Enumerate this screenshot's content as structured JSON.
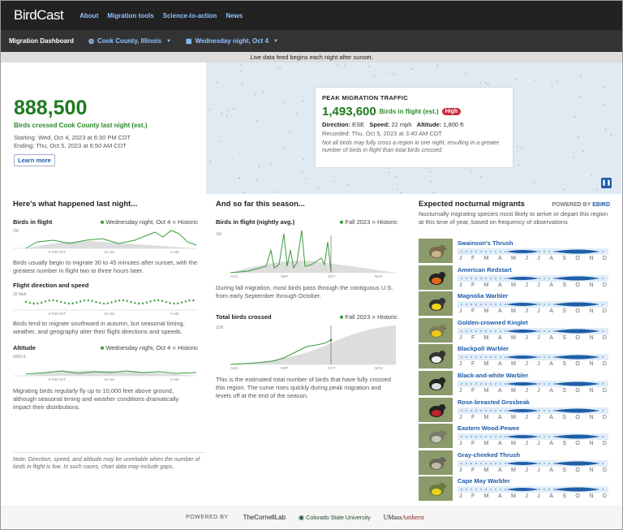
{
  "nav": {
    "logo_a": "Bird",
    "logo_b": "Cast",
    "links": [
      "About",
      "Migration tools",
      "Science-to-action",
      "News"
    ]
  },
  "subnav": {
    "dashboard": "Migration Dashboard",
    "location": "Cook County, Illinois",
    "date": "Wednesday night, Oct 4"
  },
  "banner": "Live data feed begins each night after sunset.",
  "hero": {
    "count": "888,500",
    "count_label": "Birds crossed Cook County last night (est.)",
    "starting": "Starting: Wed, Oct 4, 2023 at 6:30 PM CDT",
    "ending": "Ending: Thu, Oct 5, 2023 at 6:50 AM CDT",
    "learn_more": "Learn more"
  },
  "peak": {
    "title": "PEAK MIGRATION TRAFFIC",
    "count": "1,493,600",
    "label": "Birds in flight (est.)",
    "badge": "High",
    "direction_label": "Direction:",
    "direction": "ESE",
    "speed_label": "Speed:",
    "speed": "22 mph",
    "altitude_label": "Altitude:",
    "altitude": "1,800 ft",
    "recorded": "Recorded: Thu, Oct 5, 2023 at 3:40 AM CDT",
    "note": "Not all birds may fully cross a region in one night, resulting in a greater number of birds in flight than total birds crossed."
  },
  "last_night": {
    "heading": "Here's what happened last night...",
    "flight": {
      "title": "Birds in flight",
      "legend_a": "Wednesday night, Oct 4",
      "legend_b": "Historic",
      "y_tick": "1M",
      "x_ticks": [
        "8 PM CDT",
        "12 AM",
        "3 AM"
      ],
      "desc": "Birds usually begin to migrate 30 to 45 minutes after sunset, with the greatest number in flight two to three hours later."
    },
    "direction": {
      "title": "Flight direction and speed",
      "y_tick": "30 Mph",
      "x_ticks": [
        "8 PM CDT",
        "12 AM",
        "3 AM"
      ],
      "desc": "Birds tend to migrate southward in autumn, but seasonal timing, weather, and geography alter their flight directions and speeds."
    },
    "altitude": {
      "title": "Altitude",
      "legend_a": "Wednesday night, Oct 4",
      "legend_b": "Historic",
      "y_tick": "6000 ft",
      "x_ticks": [
        "8 PM CDT",
        "12 AM",
        "3 AM"
      ],
      "desc": "Migrating birds regularly fly up to 10,000 feet above ground, although seasonal timing and weather conditions dramatically impact their distributions."
    },
    "note": "Note: Direction, speed, and altitude may be unreliable when the number of birds in flight is low. In such cases, chart data may include gaps."
  },
  "season": {
    "heading": "And so far this season...",
    "flight": {
      "title": "Birds in flight (nightly avg.)",
      "legend_a": "Fall 2023",
      "legend_b": "Historic",
      "y_tick": "1M",
      "x_ticks": [
        "AUG",
        "SEP",
        "OCT",
        "NOV"
      ],
      "desc": "During fall migration, most birds pass through the contiguous U.S. from early September through October."
    },
    "total": {
      "title": "Total birds crossed",
      "legend_a": "Fall 2023",
      "legend_b": "Historic",
      "y_tick": "11M",
      "x_ticks": [
        "AUG",
        "SEP",
        "OCT",
        "NOV"
      ],
      "desc": "This is the estimated total number of birds that have fully crossed this region. The curve rises quickly during peak migration and levels off at the end of the season."
    }
  },
  "migrants": {
    "heading": "Expected nocturnal migrants",
    "powered": "POWERED BY",
    "ebird": "EBIRD",
    "desc": "Nocturnally migrating species most likely to arrive or depart this region at this time of year, based on frequency of observations",
    "months": [
      "J",
      "F",
      "M",
      "A",
      "M",
      "J",
      "J",
      "A",
      "S",
      "O",
      "N",
      "D"
    ],
    "species": [
      "Swainson's Thrush",
      "American Redstart",
      "Magnolia Warbler",
      "Golden-crowned Kinglet",
      "Blackpoll Warbler",
      "Black-and-white Warbler",
      "Rose-breasted Grosbeak",
      "Eastern Wood-Pewee",
      "Gray-cheeked Thrush",
      "Cape May Warbler"
    ]
  },
  "footer": {
    "powered": "POWERED BY",
    "cornell": "TheCornellLab",
    "csu": "Colorado State University",
    "umass_a": "UMass",
    "umass_b": "Amherst"
  }
}
